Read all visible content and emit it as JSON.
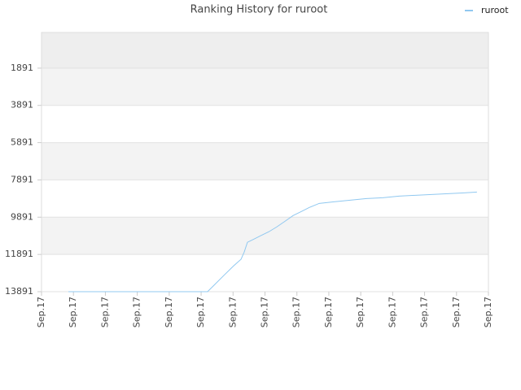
{
  "chart_data": {
    "type": "line",
    "title": "Ranking History for ruroot",
    "x": [
      0.84,
      5.2,
      5.38,
      5.71,
      6.02,
      6.25,
      6.35,
      6.45,
      6.66,
      6.86,
      7.12,
      7.37,
      7.63,
      7.88,
      8.14,
      8.39,
      8.7,
      9.16,
      9.67,
      10.18,
      10.69,
      11.2,
      11.71,
      12.22,
      12.73,
      13.24,
      13.64
    ],
    "series": [
      {
        "name": "ruroot",
        "color": "#90c8f0",
        "values": [
          13891,
          13891,
          13587,
          13021,
          12500,
          12152,
          11761,
          11239,
          11065,
          10891,
          10674,
          10413,
          10108,
          9804,
          9587,
          9369,
          9152,
          9065,
          8978,
          8891,
          8848,
          8761,
          8717,
          8674,
          8630,
          8587,
          8543
        ]
      }
    ],
    "xlim": [
      0,
      14
    ],
    "xticks": [
      {
        "value": 0,
        "label": "Sep.17"
      },
      {
        "value": 1,
        "label": "Sep.17"
      },
      {
        "value": 2,
        "label": "Sep.17"
      },
      {
        "value": 3,
        "label": "Sep.17"
      },
      {
        "value": 4,
        "label": "Sep.17"
      },
      {
        "value": 5,
        "label": "Sep.17"
      },
      {
        "value": 6,
        "label": "Sep.17"
      },
      {
        "value": 7,
        "label": "Sep.17"
      },
      {
        "value": 8,
        "label": "Sep.17"
      },
      {
        "value": 9,
        "label": "Sep.17"
      },
      {
        "value": 10,
        "label": "Sep.17"
      },
      {
        "value": 11,
        "label": "Sep.17"
      },
      {
        "value": 12,
        "label": "Sep.17"
      },
      {
        "value": 13,
        "label": "Sep.17"
      },
      {
        "value": 14,
        "label": "Sep.17"
      }
    ],
    "ylim": [
      13891,
      -22
    ],
    "yticks": [
      1891,
      3891,
      5891,
      7891,
      9891,
      11891,
      13891
    ],
    "grid": true,
    "legend": "top-right"
  }
}
